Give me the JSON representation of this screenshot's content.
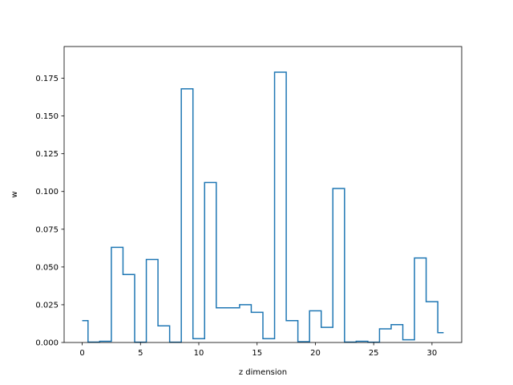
{
  "chart_data": {
    "type": "step",
    "title": "",
    "xlabel": "z dimension",
    "ylabel": "w",
    "xlim": [
      -1.55,
      32.55
    ],
    "ylim": [
      0,
      0.196
    ],
    "xticks": [
      0,
      5,
      10,
      15,
      20,
      25,
      30
    ],
    "xtick_labels": [
      "0",
      "5",
      "10",
      "15",
      "20",
      "25",
      "30"
    ],
    "yticks": [
      0,
      0.025,
      0.05,
      0.075,
      0.1,
      0.125,
      0.15,
      0.175
    ],
    "ytick_labels": [
      "0.000",
      "0.025",
      "0.050",
      "0.075",
      "0.100",
      "0.125",
      "0.150",
      "0.175"
    ],
    "grid": false,
    "series": [
      {
        "color": "#1f77b4",
        "step": "mid",
        "x": [
          0,
          1,
          2,
          3,
          4,
          5,
          6,
          7,
          8,
          9,
          10,
          11,
          12,
          13,
          14,
          15,
          16,
          17,
          18,
          19,
          20,
          21,
          22,
          23,
          24,
          25,
          26,
          27,
          28,
          29,
          30,
          31
        ],
        "y": [
          0.0145,
          0.0003,
          0.0008,
          0.063,
          0.045,
          0.0002,
          0.055,
          0.011,
          0.0002,
          0.168,
          0.0025,
          0.106,
          0.023,
          0.023,
          0.025,
          0.02,
          0.0025,
          0.179,
          0.0145,
          0.0005,
          0.021,
          0.01,
          0.102,
          0.0003,
          0.0008,
          0.0002,
          0.009,
          0.0118,
          0.0018,
          0.056,
          0.027,
          0.0065
        ]
      }
    ]
  }
}
